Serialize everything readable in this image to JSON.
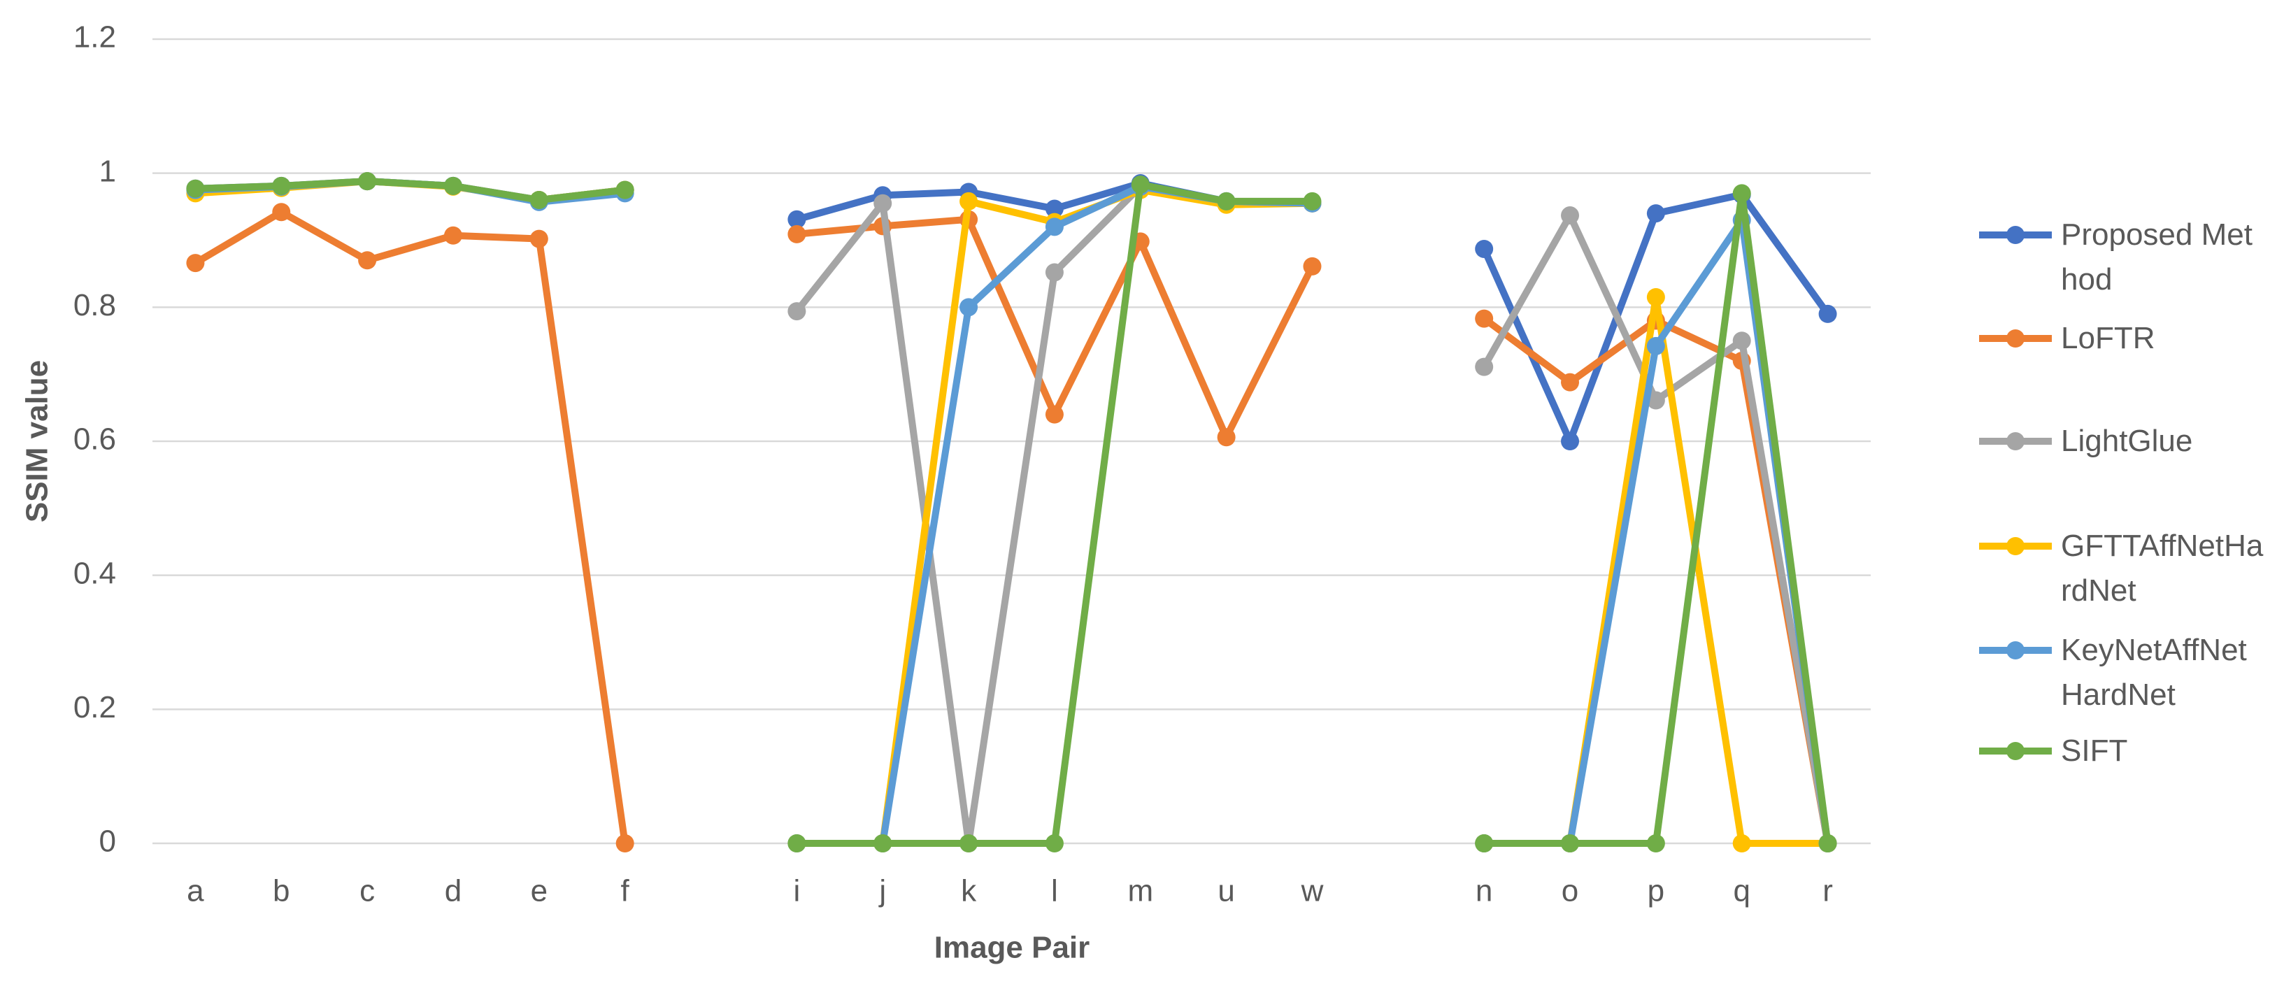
{
  "chart_data": {
    "type": "line",
    "xlabel": "Image Pair",
    "ylabel": "SSIM value",
    "categories": [
      "a",
      "b",
      "c",
      "d",
      "e",
      "f",
      null,
      "i",
      "j",
      "k",
      "l",
      "m",
      "u",
      "w",
      null,
      "n",
      "o",
      "p",
      "q",
      "r"
    ],
    "ylim": [
      0,
      1.2
    ],
    "yticks": [
      0,
      0.2,
      0.4,
      0.6,
      0.8,
      1,
      1.2
    ],
    "grid": true,
    "legend": "right",
    "series": [
      {
        "name": "Proposed Method",
        "color": "#4472c4",
        "values": [
          0.977,
          0.981,
          0.988,
          0.981,
          0.96,
          0.975,
          null,
          0.931,
          0.967,
          0.972,
          0.947,
          0.985,
          0.958,
          0.955,
          null,
          0.887,
          0.6,
          0.94,
          0.968,
          0.79
        ]
      },
      {
        "name": "LoFTR",
        "color": "#ed7d31",
        "values": [
          0.866,
          0.942,
          0.87,
          0.907,
          0.902,
          0,
          null,
          0.909,
          0.921,
          0.931,
          0.64,
          0.898,
          0.606,
          0.861,
          null,
          0.783,
          0.688,
          0.78,
          0.72,
          0
        ]
      },
      {
        "name": "LightGlue",
        "color": "#a5a5a5",
        "values": [
          0.975,
          0.98,
          0.988,
          0.981,
          0.96,
          0.975,
          null,
          0.794,
          0.955,
          0,
          0.852,
          0.98,
          0.958,
          0.955,
          null,
          0.711,
          0.937,
          0.661,
          0.75,
          0
        ]
      },
      {
        "name": "GFTTAffNetHardNet",
        "color": "#ffc000",
        "values": [
          0.97,
          0.978,
          0.988,
          0.98,
          0.96,
          0.975,
          null,
          0,
          0,
          0.958,
          0.927,
          0.975,
          0.953,
          0.955,
          null,
          0,
          0,
          0.815,
          0,
          0
        ]
      },
      {
        "name": "KeyNetAffNetHardNet",
        "color": "#5b9bd5",
        "values": [
          0.975,
          0.98,
          0.988,
          0.981,
          0.957,
          0.97,
          null,
          0,
          0,
          0.8,
          0.92,
          0.98,
          0.958,
          0.955,
          null,
          0,
          0,
          0.742,
          0.93,
          0
        ]
      },
      {
        "name": "SIFT",
        "color": "#70ad47",
        "values": [
          0.977,
          0.981,
          0.988,
          0.981,
          0.96,
          0.975,
          null,
          0,
          0,
          0,
          0,
          0.983,
          0.958,
          0.958,
          null,
          0,
          0,
          0,
          0.97,
          0
        ]
      }
    ]
  }
}
